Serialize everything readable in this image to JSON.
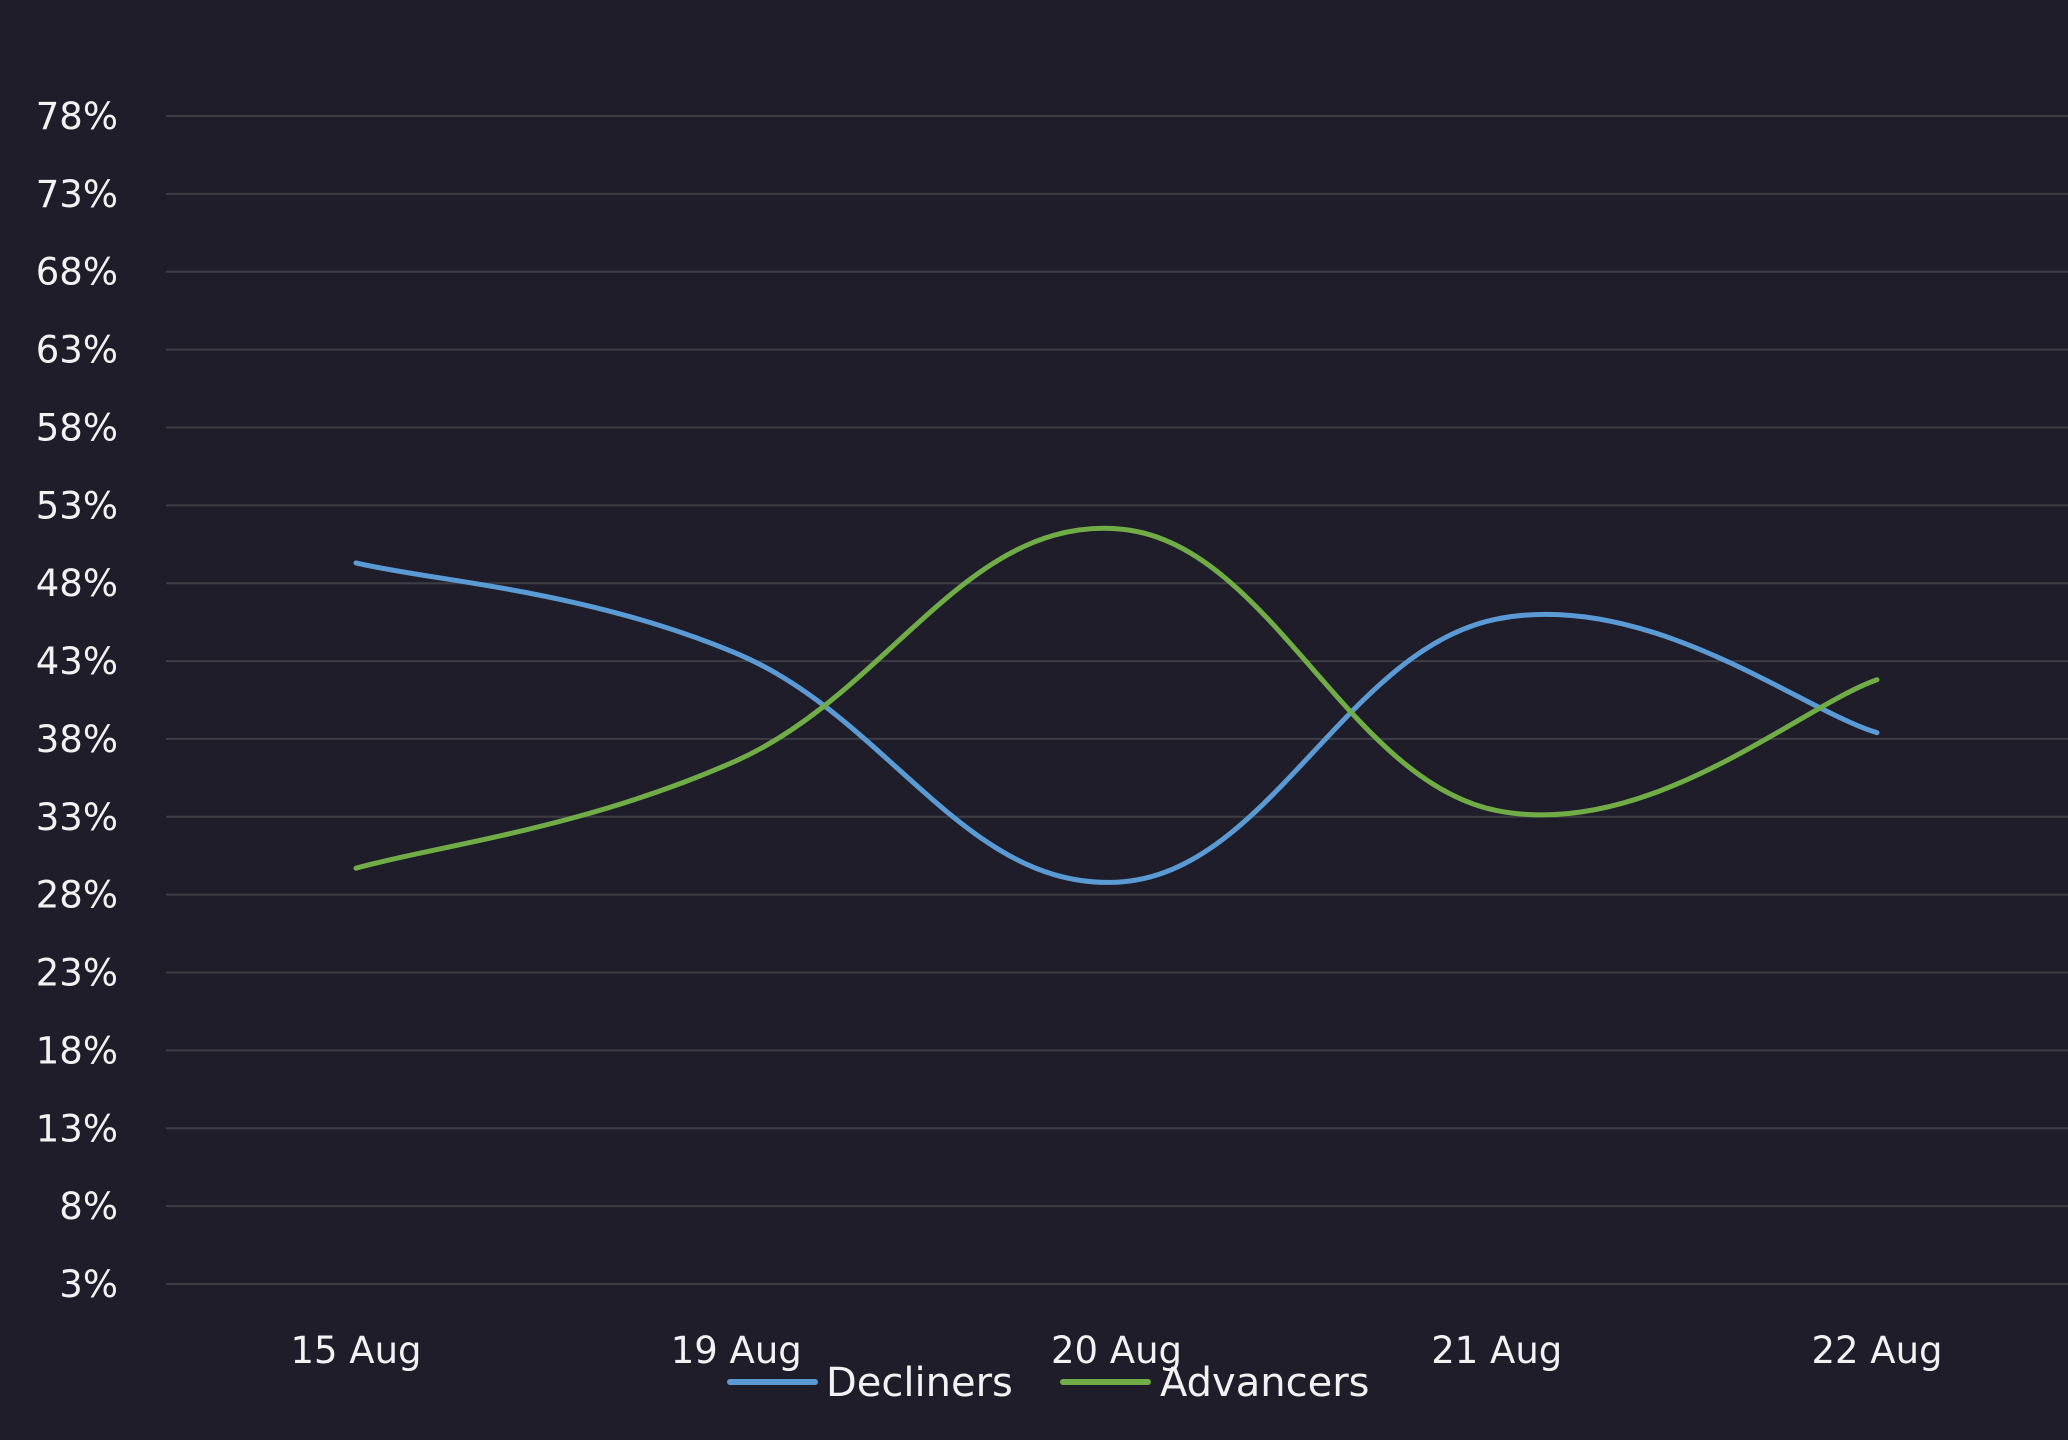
{
  "colors": {
    "background": "#1f1d29",
    "grid": "#3e3d44",
    "text": "#f2f2f2",
    "decliners": "#5b9bd5",
    "advancers": "#70ad47"
  },
  "chart_data": {
    "type": "line",
    "categories": [
      "15 Aug",
      "19 Aug",
      "20 Aug",
      "21 Aug",
      "22 Aug"
    ],
    "series": [
      {
        "name": "Decliners",
        "color": "#5b9bd5",
        "values": [
          49.3,
          43.5,
          28.8,
          45.7,
          38.4
        ]
      },
      {
        "name": "Advancers",
        "color": "#70ad47",
        "values": [
          29.7,
          36.6,
          51.5,
          33.4,
          41.8
        ]
      }
    ],
    "yticks": [
      "3%",
      "8%",
      "13%",
      "18%",
      "23%",
      "28%",
      "33%",
      "38%",
      "43%",
      "48%",
      "53%",
      "58%",
      "63%",
      "68%",
      "73%",
      "78%"
    ],
    "ylim": [
      3,
      78
    ],
    "y_tick_step": 5,
    "grid": true,
    "smooth": true,
    "legend_position": "bottom"
  }
}
